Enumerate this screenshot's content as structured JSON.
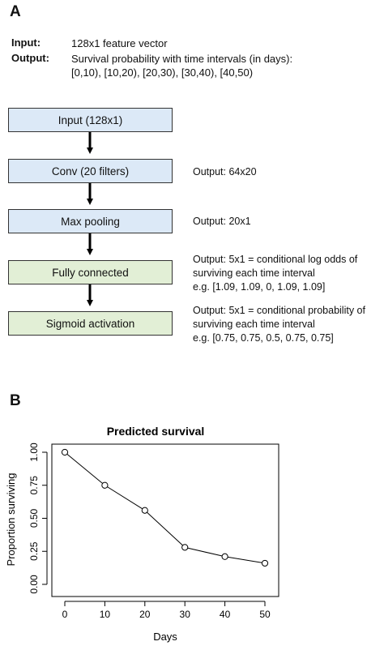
{
  "panel_a": {
    "label": "A",
    "input_key": "Input:",
    "input_value": "128x1 feature vector",
    "output_key": "Output:",
    "output_value_line1": "Survival probability with time intervals (in days):",
    "output_value_line2": "[0,10), [10,20), [20,30), [30,40), [40,50)",
    "layers": [
      {
        "label": "Input (128x1)"
      },
      {
        "label": "Conv (20 filters)",
        "note": [
          "Output: 64x20"
        ]
      },
      {
        "label": "Max pooling",
        "note": [
          "Output: 20x1"
        ]
      },
      {
        "label": "Fully connected",
        "note": [
          "Output: 5x1 = conditional log odds of",
          "surviving each time interval",
          "e.g. [1.09, 1.09, 0, 1.09, 1.09]"
        ]
      },
      {
        "label": "Sigmoid activation",
        "note": [
          "Output: 5x1 = conditional probability of",
          "surviving each time interval",
          "e.g. [0.75, 0.75, 0.5, 0.75, 0.75]"
        ]
      }
    ],
    "colors": {
      "conv_box": "#dce9f7",
      "dense_box": "#e2efd6",
      "arrow": "#000000"
    }
  },
  "panel_b": {
    "label": "B"
  },
  "chart_data": {
    "type": "line",
    "title": "Predicted survival",
    "xlabel": "Days",
    "ylabel": "Proportion surviving",
    "x": [
      0,
      10,
      20,
      30,
      40,
      50
    ],
    "y": [
      1.0,
      0.75,
      0.56,
      0.28,
      0.21,
      0.16
    ],
    "xticks": [
      "0",
      "10",
      "20",
      "30",
      "40",
      "50"
    ],
    "yticks": [
      "0.00",
      "0.25",
      "0.50",
      "0.75",
      "1.00"
    ],
    "xlim": [
      0,
      50
    ],
    "ylim": [
      0,
      1
    ],
    "marker": "open-circle",
    "grid": false
  }
}
